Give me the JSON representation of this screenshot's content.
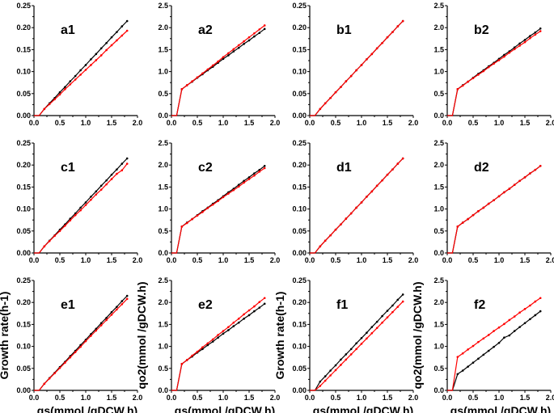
{
  "chart_data": [
    {
      "type": "line",
      "title": "a1",
      "ylim": [
        0,
        0.25
      ],
      "xlim": [
        0,
        2.0
      ],
      "ylabel": "",
      "xlabel": "",
      "yticks": [
        "0.00",
        "0.05",
        "0.10",
        "0.15",
        "0.20",
        "0.25"
      ],
      "xticks": [
        "0.0",
        "0.5",
        "1.0",
        "1.5",
        "2.0"
      ],
      "x": [
        0,
        0.1,
        0.2,
        0.3,
        0.4,
        0.5,
        0.6,
        0.7,
        0.8,
        0.9,
        1.0,
        1.1,
        1.2,
        1.3,
        1.4,
        1.5,
        1.6,
        1.7,
        1.8
      ],
      "series": [
        {
          "color": "#000000",
          "values": [
            0,
            0,
            0.015,
            0.028,
            0.04,
            0.053,
            0.065,
            0.078,
            0.09,
            0.103,
            0.115,
            0.128,
            0.14,
            0.153,
            0.165,
            0.178,
            0.19,
            0.203,
            0.215
          ]
        },
        {
          "color": "#ff0000",
          "values": [
            0,
            0,
            0.015,
            0.026,
            0.037,
            0.048,
            0.06,
            0.071,
            0.082,
            0.093,
            0.104,
            0.115,
            0.126,
            0.137,
            0.149,
            0.16,
            0.171,
            0.182,
            0.193
          ]
        }
      ]
    },
    {
      "type": "line",
      "title": "a2",
      "ylim": [
        0,
        2.5
      ],
      "xlim": [
        0,
        2.0
      ],
      "ylabel": "",
      "xlabel": "",
      "yticks": [
        "0.0",
        "0.5",
        "1.0",
        "1.5",
        "2.0",
        "2.5"
      ],
      "xticks": [
        "0.0",
        "0.5",
        "1.0",
        "1.5",
        "2.0"
      ],
      "x": [
        0,
        0.1,
        0.2,
        0.3,
        0.4,
        0.5,
        0.6,
        0.7,
        0.8,
        0.9,
        1.0,
        1.1,
        1.2,
        1.3,
        1.4,
        1.5,
        1.6,
        1.7,
        1.8
      ],
      "series": [
        {
          "color": "#000000",
          "values": [
            0,
            0,
            0.6,
            0.69,
            0.77,
            0.86,
            0.94,
            1.03,
            1.11,
            1.2,
            1.29,
            1.37,
            1.46,
            1.54,
            1.63,
            1.71,
            1.8,
            1.88,
            1.97
          ]
        },
        {
          "color": "#ff0000",
          "values": [
            0,
            0,
            0.6,
            0.69,
            0.78,
            0.87,
            0.96,
            1.05,
            1.14,
            1.23,
            1.33,
            1.42,
            1.51,
            1.6,
            1.69,
            1.78,
            1.87,
            1.96,
            2.05
          ]
        }
      ]
    },
    {
      "type": "line",
      "title": "b1",
      "ylim": [
        0,
        0.25
      ],
      "xlim": [
        0,
        2.0
      ],
      "ylabel": "",
      "xlabel": "",
      "yticks": [
        "0.00",
        "0.05",
        "0.10",
        "0.15",
        "0.20",
        "0.25"
      ],
      "xticks": [
        "0.0",
        "0.5",
        "1.0",
        "1.5",
        "2.0"
      ],
      "x": [
        0,
        0.1,
        0.2,
        0.3,
        0.4,
        0.5,
        0.6,
        0.7,
        0.8,
        0.9,
        1.0,
        1.1,
        1.2,
        1.3,
        1.4,
        1.5,
        1.6,
        1.7,
        1.8
      ],
      "series": [
        {
          "color": "#000000",
          "values": [
            0,
            0,
            0.015,
            0.028,
            0.04,
            0.053,
            0.065,
            0.078,
            0.09,
            0.103,
            0.115,
            0.128,
            0.14,
            0.153,
            0.165,
            0.178,
            0.19,
            0.203,
            0.215
          ]
        },
        {
          "color": "#ff0000",
          "values": [
            0,
            0,
            0.015,
            0.028,
            0.04,
            0.053,
            0.065,
            0.078,
            0.09,
            0.103,
            0.115,
            0.128,
            0.14,
            0.153,
            0.165,
            0.178,
            0.19,
            0.203,
            0.215
          ]
        }
      ]
    },
    {
      "type": "line",
      "title": "b2",
      "ylim": [
        0,
        2.5
      ],
      "xlim": [
        0,
        2.0
      ],
      "ylabel": "",
      "xlabel": "",
      "yticks": [
        "0.0",
        "0.5",
        "1.0",
        "1.5",
        "2.0",
        "2.5"
      ],
      "xticks": [
        "0.0",
        "0.5",
        "1.0",
        "1.5",
        "2.0"
      ],
      "x": [
        0,
        0.1,
        0.2,
        0.3,
        0.4,
        0.5,
        0.6,
        0.7,
        0.8,
        0.9,
        1.0,
        1.1,
        1.2,
        1.3,
        1.4,
        1.5,
        1.6,
        1.7,
        1.8
      ],
      "series": [
        {
          "color": "#000000",
          "values": [
            0,
            0,
            0.6,
            0.69,
            0.77,
            0.86,
            0.95,
            1.03,
            1.12,
            1.2,
            1.29,
            1.38,
            1.46,
            1.55,
            1.64,
            1.72,
            1.81,
            1.89,
            1.98
          ]
        },
        {
          "color": "#ff0000",
          "values": [
            0,
            0,
            0.6,
            0.68,
            0.77,
            0.85,
            0.93,
            1.01,
            1.1,
            1.18,
            1.26,
            1.34,
            1.43,
            1.51,
            1.59,
            1.67,
            1.76,
            1.84,
            1.92
          ]
        }
      ]
    },
    {
      "type": "line",
      "title": "c1",
      "ylim": [
        0,
        0.25
      ],
      "xlim": [
        0,
        2.0
      ],
      "ylabel": "",
      "xlabel": "",
      "yticks": [
        "0.00",
        "0.05",
        "0.10",
        "0.15",
        "0.20",
        "0.25"
      ],
      "xticks": [
        "0.0",
        "0.5",
        "1.0",
        "1.5",
        "2.0"
      ],
      "x": [
        0,
        0.1,
        0.2,
        0.3,
        0.4,
        0.5,
        0.6,
        0.7,
        0.8,
        0.9,
        1.0,
        1.1,
        1.2,
        1.3,
        1.4,
        1.5,
        1.6,
        1.7,
        1.8
      ],
      "series": [
        {
          "color": "#000000",
          "values": [
            0,
            0,
            0.015,
            0.028,
            0.04,
            0.053,
            0.065,
            0.078,
            0.09,
            0.103,
            0.115,
            0.128,
            0.14,
            0.153,
            0.165,
            0.178,
            0.19,
            0.203,
            0.215
          ]
        },
        {
          "color": "#ff0000",
          "values": [
            0,
            0,
            0.015,
            0.027,
            0.039,
            0.05,
            0.062,
            0.074,
            0.086,
            0.097,
            0.109,
            0.121,
            0.133,
            0.144,
            0.156,
            0.168,
            0.18,
            0.188,
            0.203
          ]
        }
      ]
    },
    {
      "type": "line",
      "title": "c2",
      "ylim": [
        0,
        2.5
      ],
      "xlim": [
        0,
        2.0
      ],
      "ylabel": "",
      "xlabel": "",
      "yticks": [
        "0.0",
        "0.5",
        "1.0",
        "1.5",
        "2.0",
        "2.5"
      ],
      "xticks": [
        "0.0",
        "0.5",
        "1.0",
        "1.5",
        "2.0"
      ],
      "x": [
        0,
        0.1,
        0.2,
        0.3,
        0.4,
        0.5,
        0.6,
        0.7,
        0.8,
        0.9,
        1.0,
        1.1,
        1.2,
        1.3,
        1.4,
        1.5,
        1.6,
        1.7,
        1.8
      ],
      "series": [
        {
          "color": "#000000",
          "values": [
            0,
            0,
            0.6,
            0.69,
            0.77,
            0.86,
            0.95,
            1.03,
            1.12,
            1.2,
            1.29,
            1.38,
            1.46,
            1.55,
            1.64,
            1.72,
            1.81,
            1.89,
            1.98
          ]
        },
        {
          "color": "#ff0000",
          "values": [
            0,
            0,
            0.6,
            0.68,
            0.77,
            0.85,
            0.93,
            1.02,
            1.1,
            1.18,
            1.27,
            1.35,
            1.43,
            1.51,
            1.6,
            1.68,
            1.76,
            1.85,
            1.93
          ]
        }
      ]
    },
    {
      "type": "line",
      "title": "d1",
      "ylim": [
        0,
        0.25
      ],
      "xlim": [
        0,
        2.0
      ],
      "ylabel": "",
      "xlabel": "",
      "yticks": [
        "0.00",
        "0.05",
        "0.10",
        "0.15",
        "0.20",
        "0.25"
      ],
      "xticks": [
        "0.0",
        "0.5",
        "1.0",
        "1.5",
        "2.0"
      ],
      "x": [
        0,
        0.1,
        0.2,
        0.3,
        0.4,
        0.5,
        0.6,
        0.7,
        0.8,
        0.9,
        1.0,
        1.1,
        1.2,
        1.3,
        1.4,
        1.5,
        1.6,
        1.7,
        1.8
      ],
      "series": [
        {
          "color": "#000000",
          "values": [
            0,
            0,
            0.015,
            0.028,
            0.04,
            0.053,
            0.065,
            0.078,
            0.09,
            0.103,
            0.115,
            0.128,
            0.14,
            0.153,
            0.165,
            0.178,
            0.19,
            0.203,
            0.215
          ]
        },
        {
          "color": "#ff0000",
          "values": [
            0,
            0,
            0.015,
            0.028,
            0.04,
            0.053,
            0.065,
            0.078,
            0.09,
            0.103,
            0.115,
            0.128,
            0.14,
            0.153,
            0.165,
            0.178,
            0.19,
            0.203,
            0.215
          ]
        }
      ]
    },
    {
      "type": "line",
      "title": "d2",
      "ylim": [
        0,
        2.5
      ],
      "xlim": [
        0,
        2.0
      ],
      "ylabel": "",
      "xlabel": "",
      "yticks": [
        "0.0",
        "0.5",
        "1.0",
        "1.5",
        "2.0",
        "2.5"
      ],
      "xticks": [
        "0.0",
        "0.5",
        "1.0",
        "1.5",
        "2.0"
      ],
      "x": [
        0,
        0.1,
        0.2,
        0.3,
        0.4,
        0.5,
        0.6,
        0.7,
        0.8,
        0.9,
        1.0,
        1.1,
        1.2,
        1.3,
        1.4,
        1.5,
        1.6,
        1.7,
        1.8
      ],
      "series": [
        {
          "color": "#000000",
          "values": [
            0,
            0,
            0.6,
            0.69,
            0.77,
            0.86,
            0.95,
            1.03,
            1.12,
            1.2,
            1.29,
            1.38,
            1.46,
            1.55,
            1.64,
            1.72,
            1.81,
            1.89,
            1.98
          ]
        },
        {
          "color": "#ff0000",
          "values": [
            0,
            0,
            0.6,
            0.69,
            0.77,
            0.86,
            0.95,
            1.03,
            1.12,
            1.2,
            1.29,
            1.38,
            1.46,
            1.55,
            1.64,
            1.72,
            1.81,
            1.89,
            1.98
          ]
        }
      ]
    },
    {
      "type": "line",
      "title": "e1",
      "ylim": [
        0,
        0.25
      ],
      "xlim": [
        0,
        2.0
      ],
      "ylabel": "Growth rate(h-1)",
      "xlabel": "qs(mmol /gDCW.h)",
      "yticks": [
        "0.00",
        "0.05",
        "0.10",
        "0.15",
        "0.20",
        "0.25"
      ],
      "xticks": [
        "0.0",
        "0.5",
        "1.0",
        "1.5",
        "2.0"
      ],
      "x": [
        0,
        0.1,
        0.2,
        0.3,
        0.4,
        0.5,
        0.6,
        0.7,
        0.8,
        0.9,
        1.0,
        1.1,
        1.2,
        1.3,
        1.4,
        1.5,
        1.6,
        1.7,
        1.8
      ],
      "series": [
        {
          "color": "#000000",
          "values": [
            0,
            0,
            0.015,
            0.028,
            0.04,
            0.053,
            0.065,
            0.078,
            0.09,
            0.103,
            0.115,
            0.128,
            0.14,
            0.153,
            0.165,
            0.178,
            0.19,
            0.203,
            0.215
          ]
        },
        {
          "color": "#ff0000",
          "values": [
            0,
            0,
            0.015,
            0.027,
            0.039,
            0.051,
            0.063,
            0.075,
            0.087,
            0.099,
            0.112,
            0.124,
            0.136,
            0.148,
            0.16,
            0.172,
            0.184,
            0.196,
            0.208
          ]
        }
      ]
    },
    {
      "type": "line",
      "title": "e2",
      "ylim": [
        0,
        2.5
      ],
      "xlim": [
        0,
        2.0
      ],
      "ylabel": "qo2(mmol /gDCW.h)",
      "xlabel": "qs(mmol /gDCW.h)",
      "yticks": [
        "0.0",
        "0.5",
        "1.0",
        "1.5",
        "2.0",
        "2.5"
      ],
      "xticks": [
        "0.0",
        "0.5",
        "1.0",
        "1.5",
        "2.0"
      ],
      "x": [
        0,
        0.1,
        0.2,
        0.3,
        0.4,
        0.5,
        0.6,
        0.7,
        0.8,
        0.9,
        1.0,
        1.1,
        1.2,
        1.3,
        1.4,
        1.5,
        1.6,
        1.7,
        1.8
      ],
      "series": [
        {
          "color": "#000000",
          "values": [
            0,
            0,
            0.6,
            0.69,
            0.77,
            0.86,
            0.94,
            1.03,
            1.11,
            1.2,
            1.29,
            1.37,
            1.46,
            1.54,
            1.63,
            1.71,
            1.8,
            1.88,
            1.97
          ]
        },
        {
          "color": "#ff0000",
          "values": [
            0,
            0,
            0.6,
            0.69,
            0.79,
            0.88,
            0.98,
            1.07,
            1.16,
            1.26,
            1.35,
            1.44,
            1.54,
            1.63,
            1.73,
            1.82,
            1.91,
            2.01,
            2.1
          ]
        }
      ]
    },
    {
      "type": "line",
      "title": "f1",
      "ylim": [
        0,
        0.25
      ],
      "xlim": [
        0,
        2.0
      ],
      "ylabel": "Growth rate(h-1)",
      "xlabel": "qs(mmol /gDCW.h)",
      "yticks": [
        "0.00",
        "0.05",
        "0.10",
        "0.15",
        "0.20",
        "0.25"
      ],
      "xticks": [
        "0.0",
        "0.5",
        "1.0",
        "1.5",
        "2.0"
      ],
      "x": [
        0,
        0.1,
        0.2,
        0.3,
        0.4,
        0.5,
        0.6,
        0.7,
        0.8,
        0.9,
        1.0,
        1.1,
        1.2,
        1.3,
        1.4,
        1.5,
        1.6,
        1.7,
        1.8
      ],
      "series": [
        {
          "color": "#000000",
          "values": [
            0,
            0,
            0.02,
            0.032,
            0.045,
            0.057,
            0.07,
            0.082,
            0.094,
            0.107,
            0.119,
            0.131,
            0.144,
            0.156,
            0.169,
            0.181,
            0.193,
            0.206,
            0.218
          ]
        },
        {
          "color": "#ff0000",
          "values": [
            0,
            0,
            0.01,
            0.022,
            0.034,
            0.046,
            0.058,
            0.07,
            0.082,
            0.094,
            0.106,
            0.118,
            0.13,
            0.142,
            0.154,
            0.166,
            0.178,
            0.19,
            0.202
          ]
        }
      ]
    },
    {
      "type": "line",
      "title": "f2",
      "ylim": [
        0,
        2.5
      ],
      "xlim": [
        0,
        2.0
      ],
      "ylabel": "qo2(mmol /gDCW.h)",
      "xlabel": "qs(mmol /gDCW.h)",
      "yticks": [
        "0.0",
        "0.5",
        "1.0",
        "1.5",
        "2.0",
        "2.5"
      ],
      "xticks": [
        "0.0",
        "0.5",
        "1.0",
        "1.5",
        "2.0"
      ],
      "x": [
        0,
        0.1,
        0.2,
        0.3,
        0.4,
        0.5,
        0.6,
        0.7,
        0.8,
        0.9,
        1.0,
        1.1,
        1.2,
        1.3,
        1.4,
        1.5,
        1.6,
        1.7,
        1.8
      ],
      "series": [
        {
          "color": "#000000",
          "values": [
            0,
            0,
            0.37,
            0.45,
            0.54,
            0.63,
            0.72,
            0.81,
            0.9,
            0.99,
            1.08,
            1.2,
            1.25,
            1.35,
            1.44,
            1.53,
            1.62,
            1.71,
            1.8
          ]
        },
        {
          "color": "#ff0000",
          "values": [
            0,
            0,
            0.76,
            0.84,
            0.93,
            1.01,
            1.1,
            1.18,
            1.26,
            1.35,
            1.43,
            1.51,
            1.6,
            1.68,
            1.77,
            1.85,
            1.93,
            2.02,
            2.1
          ]
        }
      ]
    }
  ]
}
